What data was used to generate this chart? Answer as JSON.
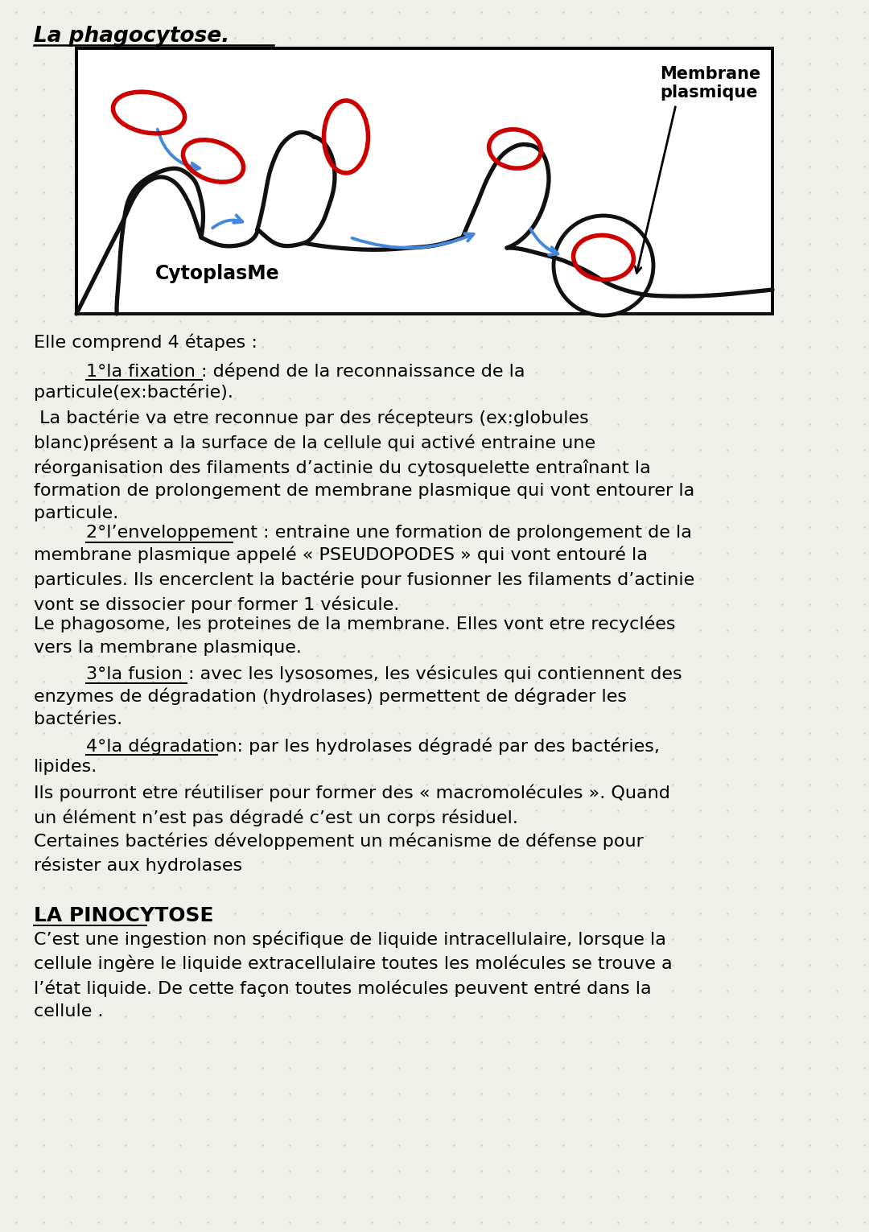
{
  "bg_color": "#f0f0eb",
  "title": "La phagocytose.",
  "diagram_label_membrane": "Membrane\nplasmique",
  "diagram_label_cytoplasme": "CytoplasMe",
  "body_font_size": 16,
  "title_font_size": 19,
  "dot_color": "#cccccc",
  "line_color": "#111111",
  "red_color": "#cc0000",
  "blue_color": "#4488dd"
}
